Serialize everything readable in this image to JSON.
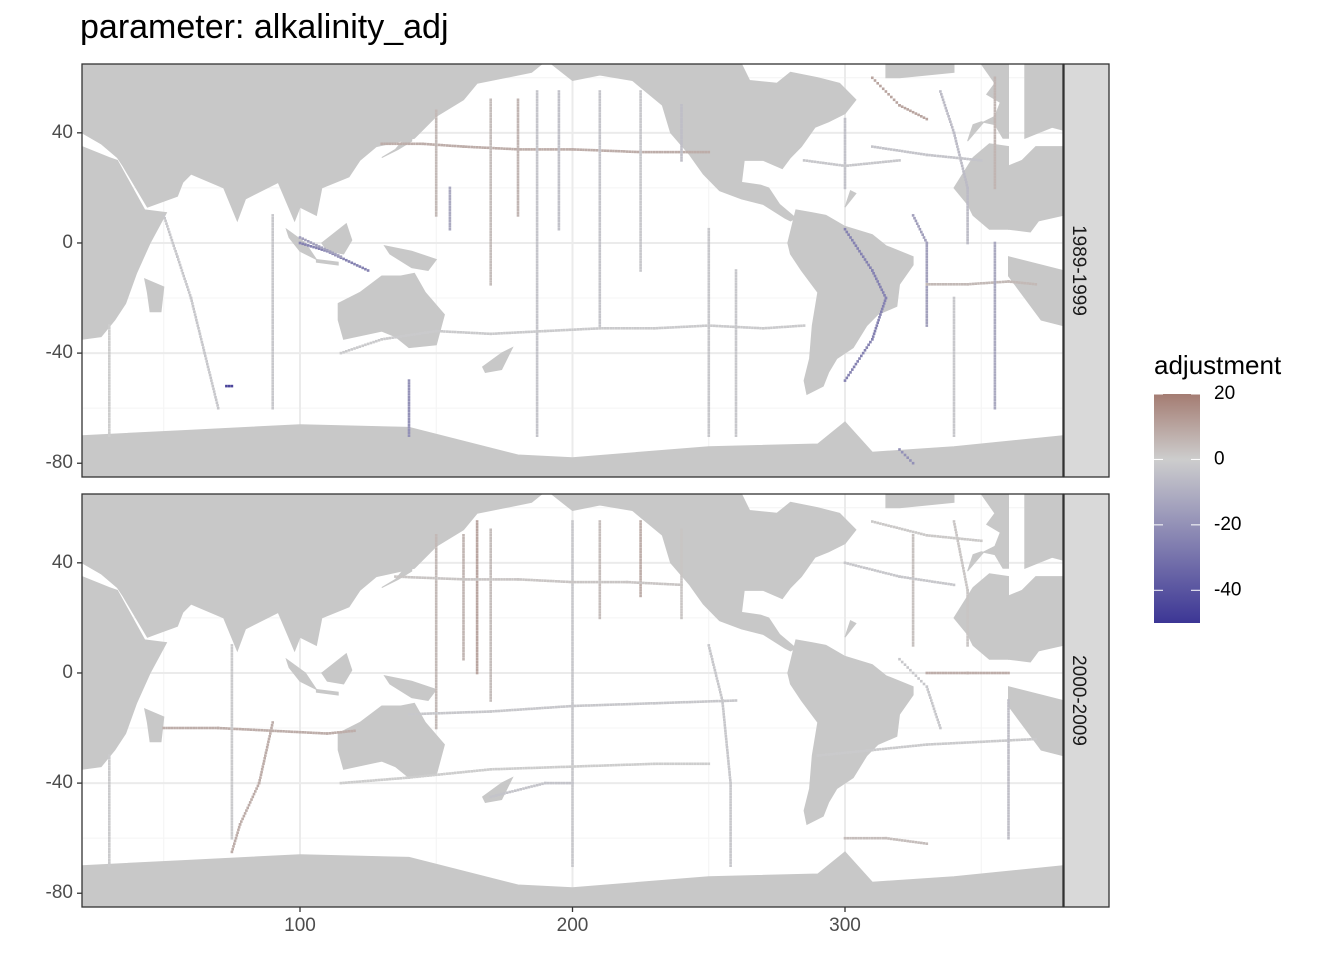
{
  "title": "parameter: alkalinity_adj",
  "chart_data": {
    "type": "heatmap",
    "title": "parameter: alkalinity_adj",
    "xlabel": "",
    "ylabel": "",
    "xlim": [
      20,
      380
    ],
    "ylim": [
      -85,
      65
    ],
    "x_ticks": [
      100,
      200,
      300
    ],
    "y_ticks": [
      40,
      0,
      -40,
      -80
    ],
    "grid": true,
    "facets": [
      "1989-1999",
      "2000-2009"
    ],
    "legend": {
      "title": "adjustment",
      "position": "right",
      "limits": [
        -50,
        20
      ],
      "ticks": [
        20,
        0,
        -20,
        -40
      ],
      "colors": {
        "high": "#a47c72",
        "mid": "#cdcdcd",
        "low": "#3c3695"
      }
    },
    "land_color": "#c8c8c8",
    "ocean_color": "#ffffff",
    "panels": [
      {
        "facet": "1989-1999",
        "tracks": [
          {
            "points": [
              [
                130,
                36
              ],
              [
                145,
                36
              ],
              [
                160,
                35
              ],
              [
                180,
                34
              ],
              [
                200,
                34
              ],
              [
                225,
                33
              ],
              [
                250,
                33
              ]
            ],
            "value": 8
          },
          {
            "points": [
              [
                150,
                48
              ],
              [
                150,
                10
              ]
            ],
            "value": 5
          },
          {
            "points": [
              [
                170,
                52
              ],
              [
                170,
                -15
              ]
            ],
            "value": 4
          },
          {
            "points": [
              [
                180,
                52
              ],
              [
                180,
                10
              ]
            ],
            "value": 6
          },
          {
            "points": [
              [
                195,
                55
              ],
              [
                195,
                5
              ]
            ],
            "value": -4
          },
          {
            "points": [
              [
                210,
                55
              ],
              [
                210,
                -30
              ]
            ],
            "value": -3
          },
          {
            "points": [
              [
                225,
                55
              ],
              [
                225,
                -10
              ]
            ],
            "value": -2
          },
          {
            "points": [
              [
                240,
                50
              ],
              [
                240,
                30
              ]
            ],
            "value": -5
          },
          {
            "points": [
              [
                187,
                55
              ],
              [
                187,
                -70
              ]
            ],
            "value": -3
          },
          {
            "points": [
              [
                155,
                20
              ],
              [
                155,
                5
              ]
            ],
            "value": -12
          },
          {
            "points": [
              [
                50,
                10
              ],
              [
                55,
                -5
              ],
              [
                60,
                -20
              ],
              [
                65,
                -40
              ],
              [
                70,
                -60
              ]
            ],
            "value": -2
          },
          {
            "points": [
              [
                100,
                0
              ],
              [
                110,
                -3
              ],
              [
                125,
                -10
              ]
            ],
            "value": -25
          },
          {
            "points": [
              [
                100,
                2
              ],
              [
                115,
                -5
              ]
            ],
            "value": -15
          },
          {
            "points": [
              [
                73,
                -52
              ],
              [
                75,
                -52
              ]
            ],
            "value": -45
          },
          {
            "points": [
              [
                30,
                -30
              ],
              [
                30,
                -70
              ]
            ],
            "value": 0
          },
          {
            "points": [
              [
                90,
                10
              ],
              [
                90,
                -60
              ]
            ],
            "value": -2
          },
          {
            "points": [
              [
                140,
                -50
              ],
              [
                140,
                -70
              ]
            ],
            "value": -20
          },
          {
            "points": [
              [
                115,
                -40
              ],
              [
                130,
                -35
              ],
              [
                150,
                -32
              ],
              [
                170,
                -33
              ],
              [
                190,
                -32
              ],
              [
                210,
                -31
              ],
              [
                230,
                -31
              ],
              [
                250,
                -30
              ],
              [
                270,
                -31
              ],
              [
                285,
                -30
              ]
            ],
            "value": -1
          },
          {
            "points": [
              [
                250,
                5
              ],
              [
                250,
                -70
              ]
            ],
            "value": -2
          },
          {
            "points": [
              [
                260,
                -10
              ],
              [
                260,
                -70
              ]
            ],
            "value": -2
          },
          {
            "points": [
              [
                300,
                5
              ],
              [
                310,
                -10
              ],
              [
                315,
                -20
              ],
              [
                310,
                -35
              ],
              [
                300,
                -50
              ]
            ],
            "value": -25
          },
          {
            "points": [
              [
                325,
                10
              ],
              [
                330,
                0
              ],
              [
                330,
                -30
              ]
            ],
            "value": -15
          },
          {
            "points": [
              [
                330,
                -15
              ],
              [
                345,
                -15
              ],
              [
                360,
                -14
              ],
              [
                370,
                -15
              ]
            ],
            "value": 5
          },
          {
            "points": [
              [
                355,
                60
              ],
              [
                355,
                20
              ]
            ],
            "value": 6
          },
          {
            "points": [
              [
                335,
                55
              ],
              [
                340,
                40
              ],
              [
                345,
                20
              ],
              [
                345,
                0
              ]
            ],
            "value": -6
          },
          {
            "points": [
              [
                300,
                45
              ],
              [
                300,
                20
              ]
            ],
            "value": -4
          },
          {
            "points": [
              [
                310,
                60
              ],
              [
                320,
                50
              ],
              [
                330,
                45
              ]
            ],
            "value": 10
          },
          {
            "points": [
              [
                355,
                0
              ],
              [
                355,
                -60
              ]
            ],
            "value": -12
          },
          {
            "points": [
              [
                340,
                -20
              ],
              [
                340,
                -70
              ]
            ],
            "value": -2
          },
          {
            "points": [
              [
                310,
                35
              ],
              [
                330,
                32
              ],
              [
                350,
                30
              ]
            ],
            "value": -3
          },
          {
            "points": [
              [
                285,
                30
              ],
              [
                300,
                28
              ],
              [
                320,
                30
              ]
            ],
            "value": -2
          },
          {
            "points": [
              [
                320,
                -75
              ],
              [
                325,
                -80
              ]
            ],
            "value": -20
          }
        ]
      },
      {
        "facet": "2000-2009",
        "tracks": [
          {
            "points": [
              [
                50,
                -20
              ],
              [
                70,
                -20
              ],
              [
                90,
                -21
              ],
              [
                110,
                -22
              ],
              [
                120,
                -21
              ]
            ],
            "value": 8
          },
          {
            "points": [
              [
                90,
                -18
              ],
              [
                85,
                -40
              ],
              [
                78,
                -55
              ],
              [
                75,
                -65
              ]
            ],
            "value": 8
          },
          {
            "points": [
              [
                150,
                50
              ],
              [
                150,
                -20
              ]
            ],
            "value": 5
          },
          {
            "points": [
              [
                160,
                50
              ],
              [
                160,
                5
              ]
            ],
            "value": 6
          },
          {
            "points": [
              [
                170,
                52
              ],
              [
                170,
                -10
              ]
            ],
            "value": 4
          },
          {
            "points": [
              [
                165,
                55
              ],
              [
                165,
                0
              ]
            ],
            "value": 10
          },
          {
            "points": [
              [
                200,
                55
              ],
              [
                200,
                -70
              ]
            ],
            "value": -2
          },
          {
            "points": [
              [
                210,
                55
              ],
              [
                210,
                20
              ]
            ],
            "value": 4
          },
          {
            "points": [
              [
                225,
                55
              ],
              [
                225,
                28
              ]
            ],
            "value": 8
          },
          {
            "points": [
              [
                240,
                52
              ],
              [
                240,
                20
              ]
            ],
            "value": 2
          },
          {
            "points": [
              [
                135,
                35
              ],
              [
                160,
                34
              ],
              [
                180,
                34
              ],
              [
                200,
                33
              ],
              [
                220,
                33
              ],
              [
                240,
                32
              ]
            ],
            "value": 2
          },
          {
            "points": [
              [
                250,
                10
              ],
              [
                255,
                -10
              ],
              [
                258,
                -40
              ],
              [
                258,
                -70
              ]
            ],
            "value": -2
          },
          {
            "points": [
              [
                30,
                -30
              ],
              [
                30,
                -70
              ]
            ],
            "value": -1
          },
          {
            "points": [
              [
                75,
                10
              ],
              [
                75,
                -60
              ]
            ],
            "value": -1
          },
          {
            "points": [
              [
                115,
                -40
              ],
              [
                140,
                -38
              ],
              [
                170,
                -35
              ],
              [
                200,
                -34
              ],
              [
                230,
                -33
              ],
              [
                250,
                -33
              ]
            ],
            "value": 0
          },
          {
            "points": [
              [
                140,
                -15
              ],
              [
                170,
                -14
              ],
              [
                200,
                -12
              ],
              [
                230,
                -11
              ],
              [
                260,
                -10
              ]
            ],
            "value": -2
          },
          {
            "points": [
              [
                320,
                5
              ],
              [
                330,
                -5
              ],
              [
                335,
                -20
              ]
            ],
            "value": -2
          },
          {
            "points": [
              [
                330,
                0
              ],
              [
                345,
                0
              ],
              [
                360,
                0
              ]
            ],
            "value": 8
          },
          {
            "points": [
              [
                325,
                50
              ],
              [
                325,
                10
              ]
            ],
            "value": 3
          },
          {
            "points": [
              [
                340,
                55
              ],
              [
                345,
                30
              ],
              [
                345,
                10
              ]
            ],
            "value": 2
          },
          {
            "points": [
              [
                310,
                55
              ],
              [
                330,
                50
              ],
              [
                350,
                48
              ]
            ],
            "value": 1
          },
          {
            "points": [
              [
                300,
                40
              ],
              [
                320,
                35
              ],
              [
                340,
                32
              ]
            ],
            "value": -2
          },
          {
            "points": [
              [
                290,
                -30
              ],
              [
                310,
                -28
              ],
              [
                330,
                -26
              ],
              [
                350,
                -25
              ],
              [
                370,
                -24
              ]
            ],
            "value": -1
          },
          {
            "points": [
              [
                360,
                -10
              ],
              [
                360,
                -60
              ]
            ],
            "value": -5
          },
          {
            "points": [
              [
                300,
                -60
              ],
              [
                315,
                -60
              ],
              [
                330,
                -62
              ]
            ],
            "value": 4
          },
          {
            "points": [
              [
                170,
                -45
              ],
              [
                190,
                -40
              ],
              [
                200,
                -40
              ]
            ],
            "value": -3
          }
        ]
      }
    ]
  }
}
